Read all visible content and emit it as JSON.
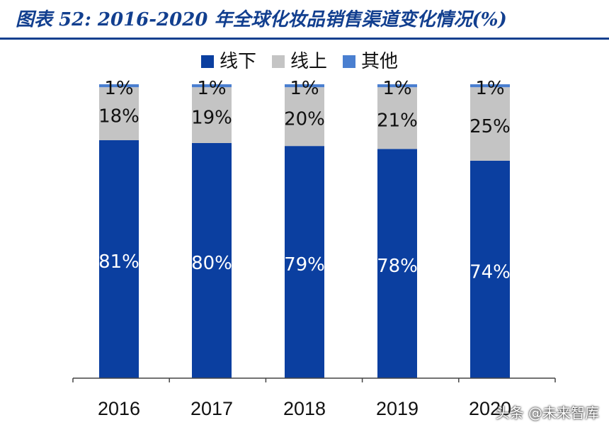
{
  "header": {
    "title": "图表 52:  2016-2020 年全球化妆品销售渠道变化情况(%)"
  },
  "watermark": "头条 @未来智库",
  "chart_data": {
    "type": "bar",
    "stacked": true,
    "categories": [
      "2016",
      "2017",
      "2018",
      "2019",
      "2020"
    ],
    "series": [
      {
        "name": "线下",
        "values": [
          81,
          80,
          79,
          78,
          74
        ],
        "color": "#0b3fa0",
        "labels": [
          "81%",
          "80%",
          "79%",
          "78%",
          "74%"
        ],
        "label_color": "#ffffff"
      },
      {
        "name": "线上",
        "values": [
          18,
          19,
          20,
          21,
          25
        ],
        "color": "#c4c4c4",
        "labels": [
          "18%",
          "19%",
          "20%",
          "21%",
          "25%"
        ],
        "label_color": "#111111"
      },
      {
        "name": "其他",
        "values": [
          1,
          1,
          1,
          1,
          1
        ],
        "color": "#4a7fd0",
        "labels": [
          "1%",
          "1%",
          "1%",
          "1%",
          "1%"
        ],
        "label_color": "#111111"
      }
    ],
    "ylim": [
      0,
      100
    ],
    "legend_position": "top",
    "grid": false
  }
}
